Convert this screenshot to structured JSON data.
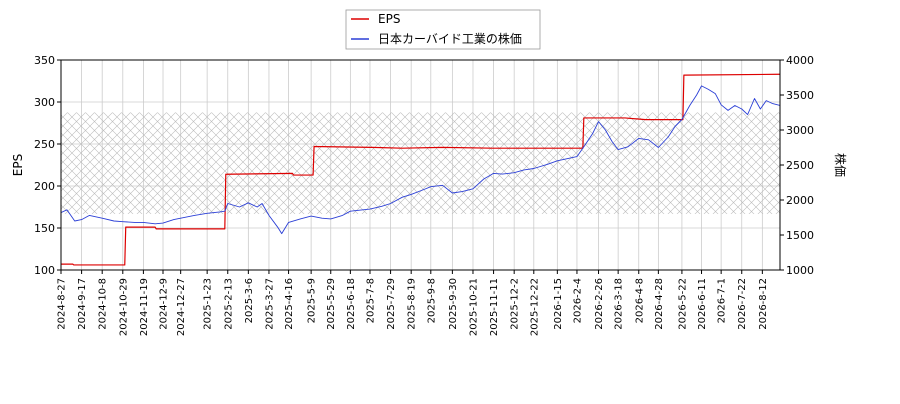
{
  "chart_data": {
    "type": "line",
    "xlabel": "",
    "ylabel_left": "EPS",
    "ylabel_right": "株価",
    "ylim_left": [
      100,
      350
    ],
    "ylim_right": [
      1000,
      4000
    ],
    "yticks_left": [
      "100",
      "150",
      "200",
      "250",
      "300",
      "350"
    ],
    "yticks_right": [
      "1000",
      "1500",
      "2000",
      "2500",
      "3000",
      "3500",
      "4000"
    ],
    "x_range": [
      "2024-08-27",
      "2026-08-30"
    ],
    "x_ticks": [
      "2024-8-27",
      "2024-9-17",
      "2024-10-8",
      "2024-10-29",
      "2024-11-19",
      "2024-12-9",
      "2024-12-27",
      "2025-1-23",
      "2025-2-13",
      "2025-3-6",
      "2025-3-27",
      "2025-4-16",
      "2025-5-9",
      "2025-5-29",
      "2025-6-18",
      "2025-7-8",
      "2025-7-29",
      "2025-8-19",
      "2025-9-8",
      "2025-9-30",
      "2025-10-21",
      "2025-11-11",
      "2025-12-2",
      "2025-12-22",
      "2026-1-15",
      "2026-2-4",
      "2026-2-26",
      "2026-3-18",
      "2026-4-8",
      "2026-4-28",
      "2026-5-22",
      "2026-6-11",
      "2026-7-1",
      "2026-7-22",
      "2026-8-12"
    ],
    "grid": true,
    "legend_position": "top-center",
    "hatched_band_right": [
      1800,
      3250
    ],
    "colors": {
      "eps": "#dd0000",
      "price": "#2b3fd6",
      "grid": "#cccccc",
      "hatch": "#bbbbbb"
    },
    "series": [
      {
        "name": "EPS",
        "axis": "left",
        "points": [
          [
            "2024-08-27",
            107
          ],
          [
            "2024-09-08",
            107
          ],
          [
            "2024-09-09",
            106
          ],
          [
            "2024-10-31",
            106
          ],
          [
            "2024-11-01",
            151
          ],
          [
            "2024-12-01",
            151
          ],
          [
            "2024-12-02",
            149
          ],
          [
            "2025-02-10",
            149
          ],
          [
            "2025-02-11",
            214
          ],
          [
            "2025-04-20",
            215
          ],
          [
            "2025-04-21",
            213
          ],
          [
            "2025-05-11",
            213
          ],
          [
            "2025-05-12",
            247
          ],
          [
            "2025-07-10",
            246
          ],
          [
            "2025-08-10",
            245
          ],
          [
            "2025-09-20",
            246
          ],
          [
            "2025-11-10",
            245
          ],
          [
            "2025-12-20",
            245
          ],
          [
            "2026-01-20",
            245
          ],
          [
            "2026-02-10",
            245
          ],
          [
            "2026-02-11",
            281
          ],
          [
            "2026-03-25",
            281
          ],
          [
            "2026-04-15",
            279
          ],
          [
            "2026-05-23",
            279
          ],
          [
            "2026-05-24",
            332
          ],
          [
            "2026-08-30",
            333
          ]
        ]
      },
      {
        "name": "日本カーバイド工業の株価",
        "axis": "right",
        "points": [
          [
            "2024-08-27",
            1820
          ],
          [
            "2024-09-02",
            1860
          ],
          [
            "2024-09-10",
            1700
          ],
          [
            "2024-09-17",
            1720
          ],
          [
            "2024-09-25",
            1780
          ],
          [
            "2024-10-08",
            1740
          ],
          [
            "2024-10-20",
            1700
          ],
          [
            "2024-10-29",
            1690
          ],
          [
            "2024-11-10",
            1680
          ],
          [
            "2024-11-19",
            1680
          ],
          [
            "2024-12-01",
            1660
          ],
          [
            "2024-12-09",
            1670
          ],
          [
            "2024-12-20",
            1720
          ],
          [
            "2024-12-27",
            1740
          ],
          [
            "2025-01-10",
            1780
          ],
          [
            "2025-01-23",
            1810
          ],
          [
            "2025-02-05",
            1830
          ],
          [
            "2025-02-10",
            1840
          ],
          [
            "2025-02-13",
            1950
          ],
          [
            "2025-02-25",
            1900
          ],
          [
            "2025-03-06",
            1960
          ],
          [
            "2025-03-15",
            1900
          ],
          [
            "2025-03-20",
            1950
          ],
          [
            "2025-03-27",
            1780
          ],
          [
            "2025-04-05",
            1610
          ],
          [
            "2025-04-09",
            1520
          ],
          [
            "2025-04-16",
            1680
          ],
          [
            "2025-04-28",
            1730
          ],
          [
            "2025-05-09",
            1770
          ],
          [
            "2025-05-20",
            1740
          ],
          [
            "2025-05-29",
            1730
          ],
          [
            "2025-06-10",
            1780
          ],
          [
            "2025-06-18",
            1840
          ],
          [
            "2025-07-08",
            1870
          ],
          [
            "2025-07-20",
            1910
          ],
          [
            "2025-07-29",
            1950
          ],
          [
            "2025-08-10",
            2040
          ],
          [
            "2025-08-19",
            2080
          ],
          [
            "2025-09-01",
            2150
          ],
          [
            "2025-09-08",
            2190
          ],
          [
            "2025-09-20",
            2210
          ],
          [
            "2025-09-30",
            2100
          ],
          [
            "2025-10-10",
            2120
          ],
          [
            "2025-10-21",
            2160
          ],
          [
            "2025-11-01",
            2300
          ],
          [
            "2025-11-11",
            2380
          ],
          [
            "2025-11-20",
            2370
          ],
          [
            "2025-12-02",
            2390
          ],
          [
            "2025-12-12",
            2430
          ],
          [
            "2025-12-22",
            2450
          ],
          [
            "2026-01-05",
            2510
          ],
          [
            "2026-01-15",
            2560
          ],
          [
            "2026-01-25",
            2590
          ],
          [
            "2026-02-04",
            2620
          ],
          [
            "2026-02-12",
            2780
          ],
          [
            "2026-02-20",
            2950
          ],
          [
            "2026-02-26",
            3120
          ],
          [
            "2026-03-05",
            3000
          ],
          [
            "2026-03-12",
            2830
          ],
          [
            "2026-03-18",
            2720
          ],
          [
            "2026-03-28",
            2760
          ],
          [
            "2026-04-08",
            2880
          ],
          [
            "2026-04-18",
            2860
          ],
          [
            "2026-04-28",
            2750
          ],
          [
            "2026-05-08",
            2900
          ],
          [
            "2026-05-15",
            3050
          ],
          [
            "2026-05-22",
            3150
          ],
          [
            "2026-05-30",
            3350
          ],
          [
            "2026-06-06",
            3500
          ],
          [
            "2026-06-11",
            3630
          ],
          [
            "2026-06-18",
            3580
          ],
          [
            "2026-06-25",
            3520
          ],
          [
            "2026-07-01",
            3360
          ],
          [
            "2026-07-08",
            3280
          ],
          [
            "2026-07-15",
            3350
          ],
          [
            "2026-07-22",
            3300
          ],
          [
            "2026-07-28",
            3220
          ],
          [
            "2026-08-04",
            3450
          ],
          [
            "2026-08-10",
            3300
          ],
          [
            "2026-08-16",
            3420
          ],
          [
            "2026-08-22",
            3380
          ],
          [
            "2026-08-30",
            3350
          ]
        ]
      }
    ]
  }
}
